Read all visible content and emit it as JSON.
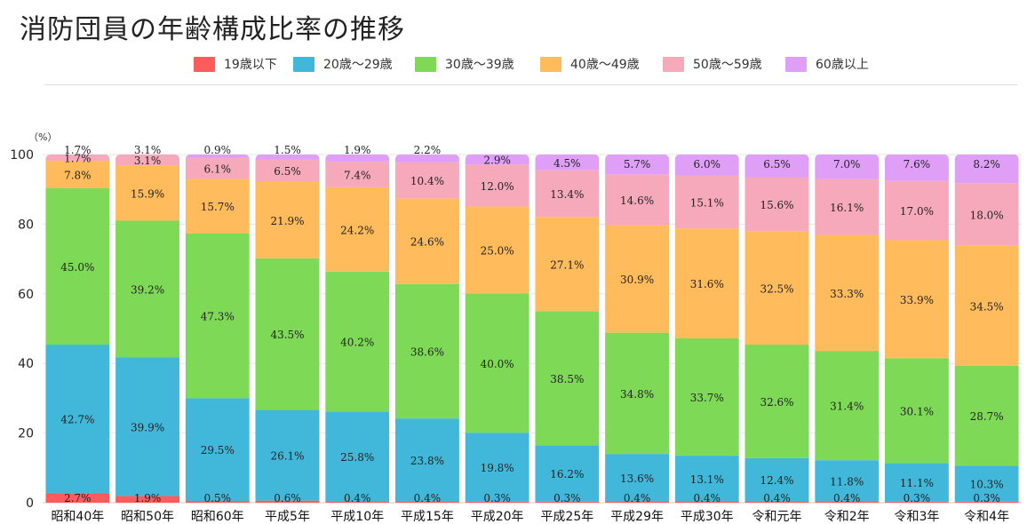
{
  "chart_data": {
    "type": "bar",
    "stacked": true,
    "title": "消防団員の年齢構成比率の推移",
    "ylabel": "（%）",
    "ylim": [
      0,
      100
    ],
    "yticks": [
      0,
      20,
      40,
      60,
      80,
      100
    ],
    "grid": true,
    "legend_position": "top",
    "categories": [
      "昭和40年",
      "昭和50年",
      "昭和60年",
      "平成5年",
      "平成10年",
      "平成15年",
      "平成20年",
      "平成25年",
      "平成29年",
      "平成30年",
      "令和元年",
      "令和2年",
      "令和3年",
      "令和4年"
    ],
    "series": [
      {
        "name": "19歳以下",
        "color": "#fd5c5c",
        "values": [
          2.7,
          1.9,
          0.5,
          0.6,
          0.4,
          0.4,
          0.3,
          0.3,
          0.4,
          0.4,
          0.4,
          0.4,
          0.3,
          0.3
        ]
      },
      {
        "name": "20歳〜29歳",
        "color": "#41b8d9",
        "values": [
          42.7,
          39.9,
          29.5,
          26.1,
          25.8,
          23.8,
          19.8,
          16.2,
          13.6,
          13.1,
          12.4,
          11.8,
          11.1,
          10.3
        ]
      },
      {
        "name": "30歳〜39歳",
        "color": "#7ed957",
        "values": [
          45.0,
          39.2,
          47.3,
          43.5,
          40.2,
          38.6,
          40.0,
          38.5,
          34.8,
          33.7,
          32.6,
          31.4,
          30.1,
          28.7
        ]
      },
      {
        "name": "40歳〜49歳",
        "color": "#ffbb5c",
        "values": [
          7.8,
          15.9,
          15.7,
          21.9,
          24.2,
          24.6,
          25.0,
          27.1,
          30.9,
          31.6,
          32.5,
          33.3,
          33.9,
          34.5
        ]
      },
      {
        "name": "50歳〜59歳",
        "color": "#f5a9bb",
        "values": [
          1.7,
          3.1,
          6.1,
          6.5,
          7.4,
          10.4,
          12.0,
          13.4,
          14.6,
          15.1,
          15.6,
          16.1,
          17.0,
          18.0
        ]
      },
      {
        "name": "60歳以上",
        "color": "#df9ff7",
        "values": [
          1.7,
          3.1,
          0.9,
          1.5,
          1.9,
          2.2,
          2.9,
          4.5,
          5.7,
          6.0,
          6.5,
          7.0,
          7.6,
          8.2
        ]
      }
    ]
  }
}
